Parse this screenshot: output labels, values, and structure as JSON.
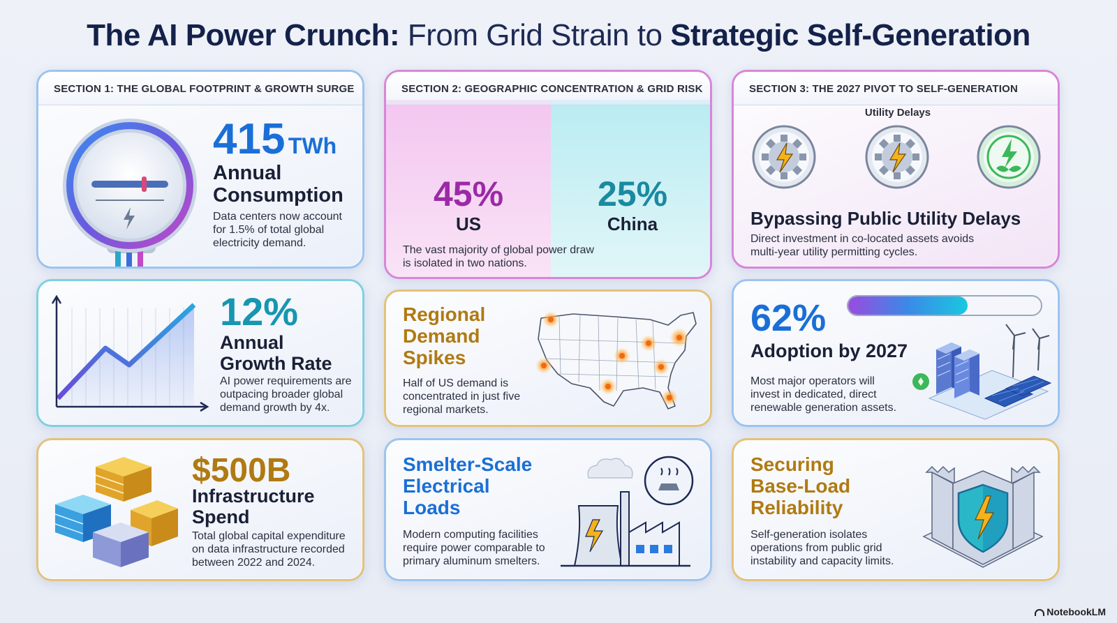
{
  "title": {
    "part1": "The AI Power Crunch:",
    "part2": " From Grid Strain to ",
    "part3": "Strategic Self-Generation"
  },
  "section1": {
    "label": "SECTION 1: THE GLOBAL FOOTPRINT & GROWTH SURGE",
    "consumption": {
      "value": "415",
      "unit": "TWh",
      "title_line1": "Annual",
      "title_line2": "Consumption",
      "desc_line1": "Data centers now account",
      "desc_line2": "for 1.5% of total global",
      "desc_line3": "electricity demand."
    },
    "growth": {
      "value": "12%",
      "title_line1": "Annual",
      "title_line2": "Growth Rate",
      "desc_line1": "AI power requirements are",
      "desc_line2": "outpacing broader global",
      "desc_line3": "demand growth by 4x."
    },
    "spend": {
      "value": "$500B",
      "title_line1": "Infrastructure",
      "title_line2": "Spend",
      "desc_line1": "Total global capital expenditure",
      "desc_line2": "on data infrastructure recorded",
      "desc_line3": "between 2022 and 2024."
    }
  },
  "section2": {
    "label": "SECTION 2: GEOGRAPHIC CONCENTRATION & GRID RISK",
    "us": {
      "value": "45%",
      "name": "US"
    },
    "china": {
      "value": "25%",
      "name": "China"
    },
    "desc_line1": "The vast majority of global power draw",
    "desc_line2": "is isolated in two nations.",
    "regional": {
      "title_line1": "Regional",
      "title_line2": "Demand",
      "title_line3": "Spikes",
      "desc_line1": "Half of US demand is",
      "desc_line2": "concentrated in just five",
      "desc_line3": "regional markets."
    },
    "smelter": {
      "title_line1": "Smelter-Scale",
      "title_line2": "Electrical",
      "title_line3": "Loads",
      "desc_line1": "Modern computing facilities",
      "desc_line2": "require power comparable to",
      "desc_line3": "primary aluminum smelters."
    }
  },
  "section3": {
    "label": "SECTION 3: THE 2027 PIVOT TO SELF-GENERATION",
    "utility_delays_label": "Utility Delays",
    "bypass": {
      "title": "Bypassing Public Utility Delays",
      "desc_line1": "Direct investment in co-located assets avoids",
      "desc_line2": "multi-year utility permitting cycles."
    },
    "adoption": {
      "value": "62%",
      "progress": 0.62,
      "title": "Adoption by 2027",
      "desc_line1": "Most major operators will",
      "desc_line2": "invest in dedicated, direct",
      "desc_line3": "renewable generation assets."
    },
    "baseload": {
      "title_line1": "Securing",
      "title_line2": "Base-Load",
      "title_line3": "Reliability",
      "desc_line1": "Self-generation isolates",
      "desc_line2": "operations from public grid",
      "desc_line3": "instability and capacity limits."
    }
  },
  "brand": "NotebookLM",
  "colors": {
    "blue": "#1a6fd6",
    "teal": "#1796b0",
    "purple": "#9b2aa6",
    "gold": "#b07a12",
    "navy": "#14224a"
  },
  "icons": [
    "power-meter-icon",
    "growth-chart-icon",
    "server-cubes-icon",
    "us-map-icon",
    "power-plant-icon",
    "gear-bolt-icon",
    "leaf-bolt-icon",
    "renewables-icon",
    "shield-castle-icon"
  ]
}
